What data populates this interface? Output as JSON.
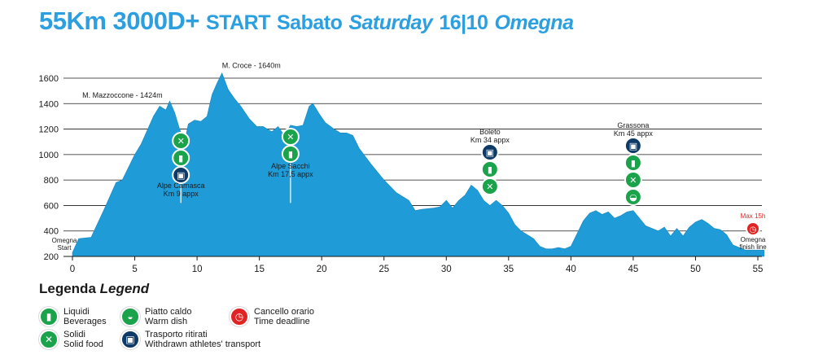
{
  "title": {
    "part1": "55Km 3000D+",
    "part2": "START",
    "part3": "Sabato",
    "part4": "Saturday",
    "part5": "16|10",
    "part6": "Omegna"
  },
  "colors": {
    "profile": "#1f9bd7",
    "title": "#2b9fe0",
    "green": "#1aa34a",
    "navy": "#0d3a66",
    "red": "#e02424",
    "grid": "#1a1a1a"
  },
  "chart_data": {
    "type": "area",
    "title": "55Km 3000D+ START Sabato Saturday 16|10 Omegna",
    "xlabel": "",
    "ylabel": "",
    "xlim": [
      0,
      55.5
    ],
    "ylim": [
      200,
      1650
    ],
    "xticks": [
      0,
      5,
      10,
      15,
      20,
      25,
      30,
      35,
      40,
      45,
      50,
      55
    ],
    "yticks": [
      200,
      400,
      600,
      800,
      1000,
      1200,
      1400,
      1600
    ],
    "grid": "horizontal",
    "x": [
      0,
      0.5,
      1.5,
      2.5,
      3.5,
      4,
      4.5,
      5,
      5.5,
      6.5,
      7,
      7.5,
      7.8,
      8.2,
      8.6,
      9,
      9.3,
      9.8,
      10.3,
      10.8,
      11.2,
      11.6,
      12,
      12.5,
      13,
      13.5,
      14.2,
      14.8,
      15.3,
      16,
      16.5,
      17,
      17.5,
      18,
      18.5,
      19,
      19.3,
      19.8,
      20.3,
      21,
      21.5,
      22,
      22.5,
      23,
      24,
      25,
      26,
      27,
      27.5,
      28,
      29,
      29.5,
      30,
      30.5,
      31,
      31.5,
      32,
      32.5,
      33,
      33.5,
      34,
      34.5,
      35,
      35.5,
      36,
      36.5,
      37,
      37.5,
      38,
      38.5,
      39,
      39.5,
      40,
      40.5,
      41,
      41.5,
      42,
      42.5,
      43,
      43.5,
      44,
      44.5,
      45,
      45.5,
      46,
      46.5,
      47,
      47.5,
      48,
      48.5,
      49,
      49.5,
      50,
      50.5,
      51,
      51.5,
      52,
      52.5,
      53,
      54,
      55,
      55.5
    ],
    "y": [
      230,
      340,
      350,
      560,
      780,
      800,
      900,
      1000,
      1080,
      1300,
      1380,
      1350,
      1420,
      1330,
      1200,
      1100,
      1240,
      1270,
      1260,
      1300,
      1470,
      1560,
      1640,
      1510,
      1440,
      1380,
      1280,
      1220,
      1220,
      1180,
      1220,
      1150,
      1230,
      1220,
      1230,
      1380,
      1400,
      1320,
      1250,
      1200,
      1170,
      1170,
      1150,
      1050,
      920,
      800,
      700,
      640,
      560,
      570,
      580,
      590,
      640,
      580,
      640,
      680,
      760,
      720,
      640,
      600,
      640,
      600,
      540,
      450,
      400,
      370,
      340,
      280,
      260,
      260,
      270,
      260,
      280,
      380,
      480,
      540,
      560,
      530,
      550,
      500,
      520,
      550,
      560,
      500,
      440,
      420,
      400,
      430,
      360,
      420,
      360,
      430,
      470,
      490,
      460,
      420,
      410,
      370,
      290,
      250,
      250,
      250
    ]
  },
  "peaks": [
    {
      "label": "M. Mazzoccone - 1424m",
      "x": 7.8,
      "y": 1420
    },
    {
      "label": "M. Croce - 1640m",
      "x": 12,
      "y": 1640
    }
  ],
  "stations": [
    {
      "name": "Alpe Camasca",
      "km": "Km 9 appx",
      "x": 8.7,
      "icons": [
        "solid",
        "liquid",
        "bus"
      ]
    },
    {
      "name": "Alpe Sacchi",
      "km": "Km 17,5 appx",
      "x": 17.5,
      "icons": [
        "solid",
        "liquid"
      ]
    },
    {
      "name": "Boleto",
      "km": "Km 34 appx",
      "x": 33.5,
      "icons": [
        "bus",
        "liquid",
        "solid"
      ]
    },
    {
      "name": "Grassona",
      "km": "Km 45 appx",
      "x": 45,
      "icons": [
        "bus",
        "liquid",
        "solid",
        "warm"
      ]
    }
  ],
  "start_label": {
    "line1": "Omegna",
    "line2": "Start"
  },
  "finish_label": {
    "line1": "Omegna",
    "line2": "finish line"
  },
  "deadline_label": "Max 15h",
  "legend": {
    "title": "Legenda",
    "title_en": "Legend",
    "items": [
      {
        "icon": "liquid",
        "it": "Liquidi",
        "en": "Beverages"
      },
      {
        "icon": "solid",
        "it": "Solidi",
        "en": "Solid food"
      },
      {
        "icon": "warm",
        "it": "Piatto caldo",
        "en": "Warm dish"
      },
      {
        "icon": "bus",
        "it": "Trasporto ritirati",
        "en": "Withdrawn athletes' transport"
      },
      {
        "icon": "clock",
        "it": "Cancello orario",
        "en": "Time deadline"
      }
    ]
  }
}
